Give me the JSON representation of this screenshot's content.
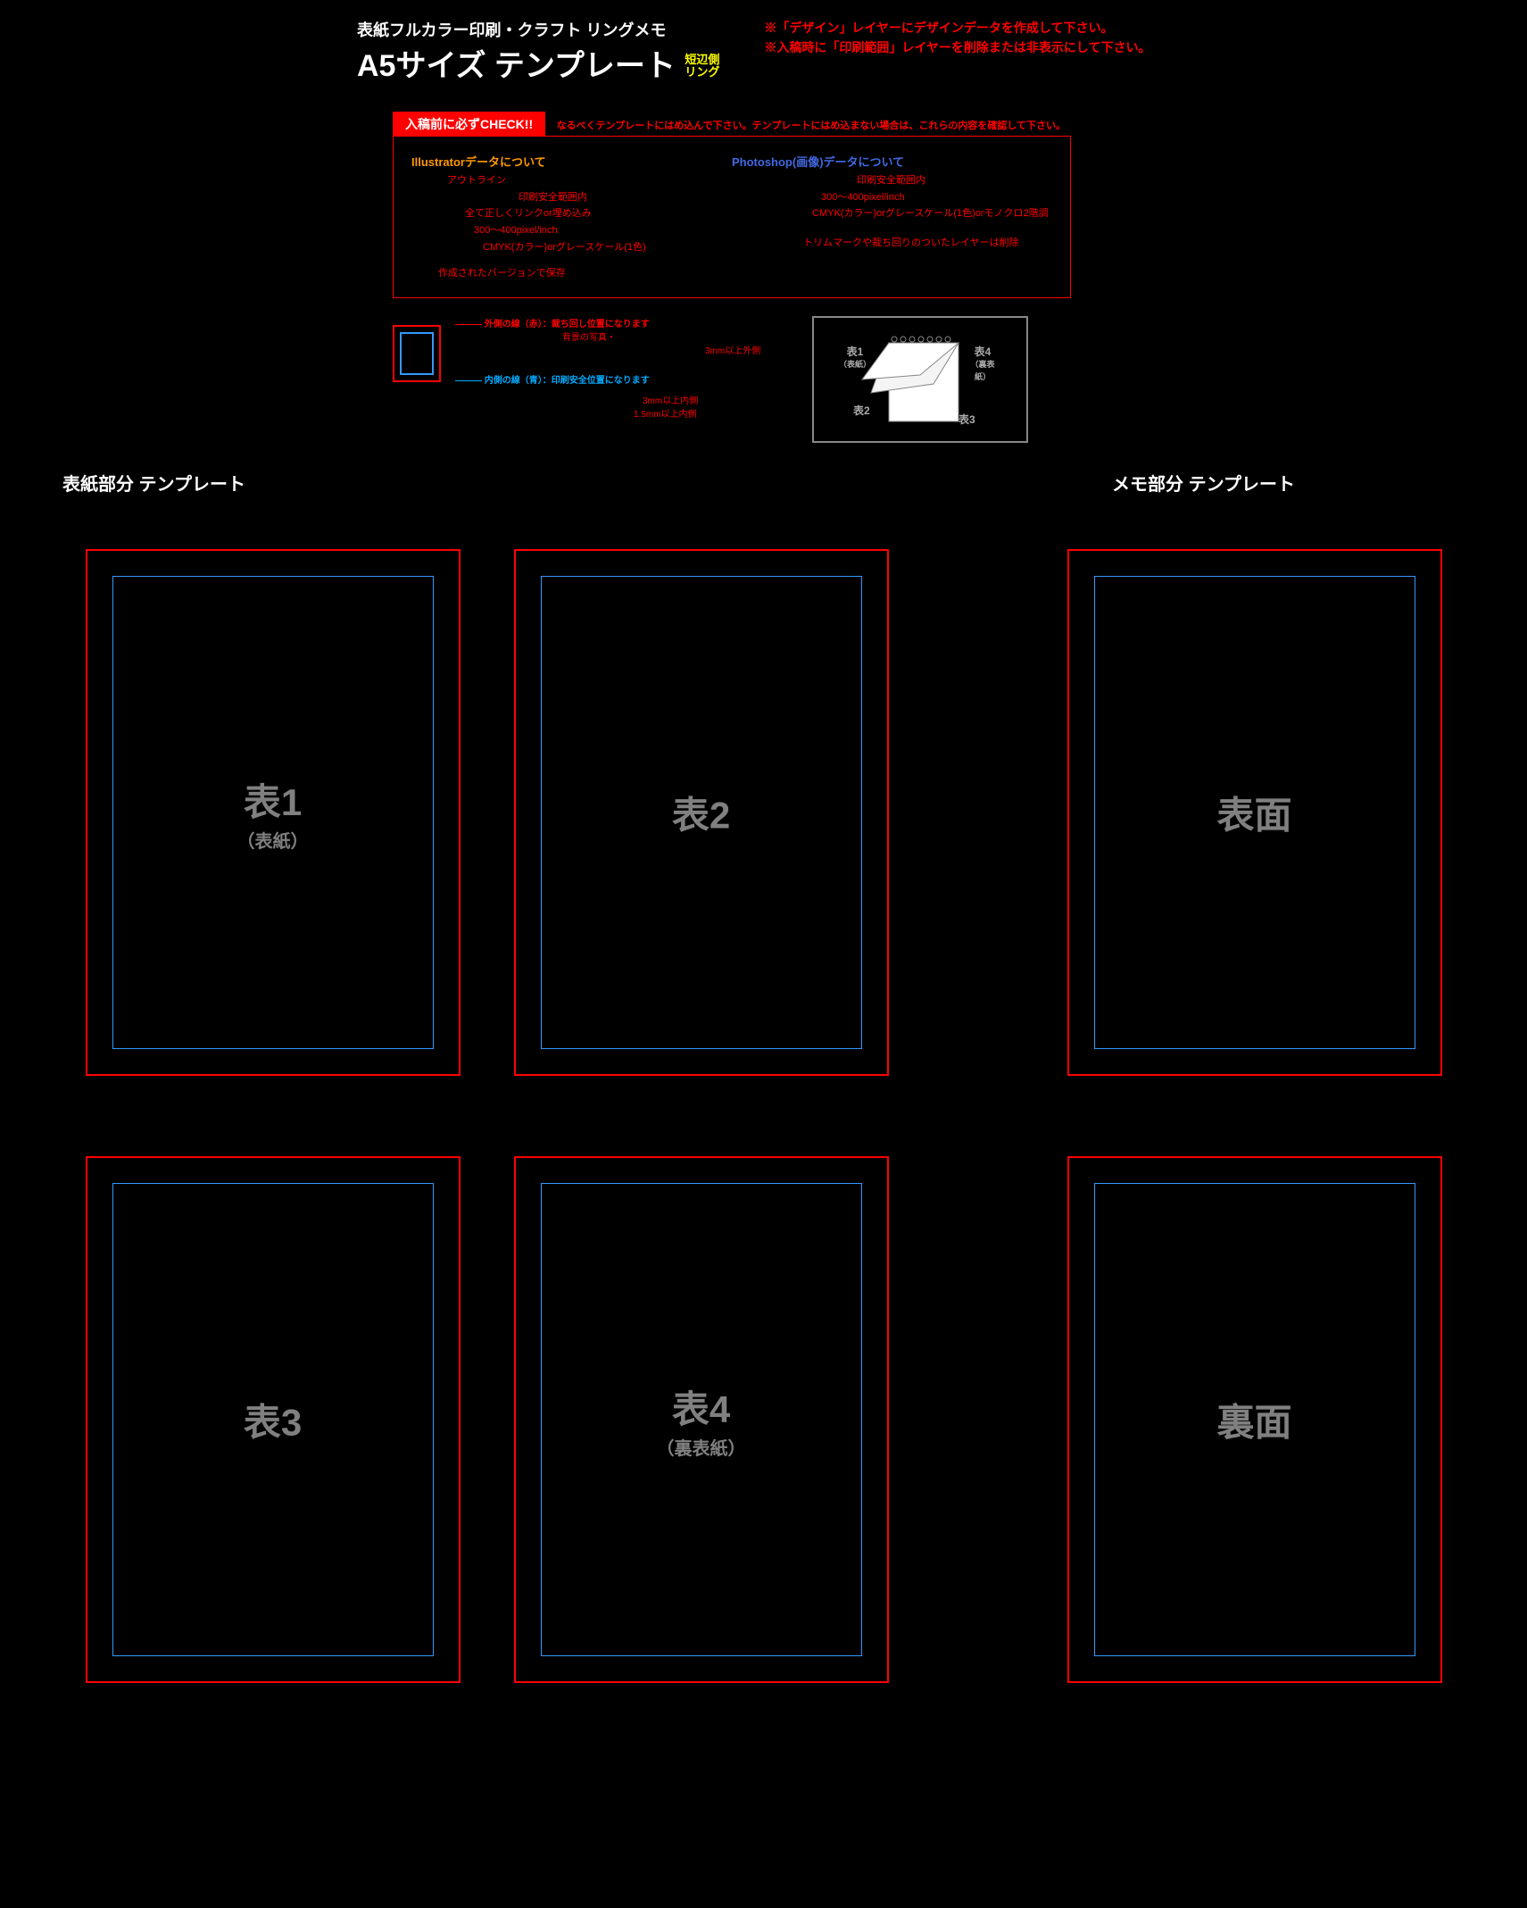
{
  "colors": {
    "bg": "#000000",
    "red": "#ff0000",
    "blue": "#3399ff",
    "orange": "#ff9900",
    "royal": "#4169e1",
    "gray": "#808080",
    "yellow": "#ffff00"
  },
  "header": {
    "subtitle": "表紙フルカラー印刷・クラフト リングメモ",
    "title": "A5サイズ テンプレート",
    "tag_line1": "短辺側",
    "tag_line2": "リング",
    "note1": "※「デザイン」レイヤーにデザインデータを作成して下さい。",
    "note2": "※入稿時に「印刷範囲」レイヤーを削除または非表示にして下さい。"
  },
  "check": {
    "tab": "入稿前に必ずCHECK!!",
    "note": "なるべくテンプレートにはめ込んで下さい。テンプレートにはめ込まない場合は、これらの内容を確認して下さい。"
  },
  "illustrator": {
    "heading": "Illustratorデータについて",
    "l1": "アウトライン",
    "l2": "印刷安全範囲内",
    "l3": "全て正しくリンクor埋め込み",
    "l4": "300～400pixel/inch",
    "l5": "CMYK(カラー)orグレースケール(1色)",
    "l6": "作成されたバージョンで保存"
  },
  "photoshop": {
    "heading": "Photoshop(画像)データについて",
    "l1": "印刷安全範囲内",
    "l2": "300～400pixel/inch",
    "l3": "CMYK(カラー)orグレースケール(1色)orモノクロ2階調",
    "l4": "トリムマークや裁ち回りのついたレイヤーは削除"
  },
  "guide": {
    "outer_label": "外側の線（赤）：裁ち回し位置になります",
    "outer_note": "背景の写真・",
    "outer_margin": "3mm以上外側",
    "inner_label": "内側の線（青）：印刷安全位置になります",
    "inner_margin1": "3mm以上内側",
    "inner_margin2": "1.5mm以上内側"
  },
  "flip": {
    "p1": "表1",
    "p1s": "（表紙）",
    "p2": "表2",
    "p3": "表3",
    "p4": "表4",
    "p4s": "（裏表紙）"
  },
  "sections": {
    "cover": "表紙部分 テンプレート",
    "memo": "メモ部分 テンプレート"
  },
  "panels": {
    "cover_w": 420,
    "cover_h": 590,
    "inner_inset": 28,
    "items": [
      {
        "title": "表1",
        "sub": "（表紙）"
      },
      {
        "title": "表2",
        "sub": ""
      },
      {
        "title": "表面",
        "sub": ""
      },
      {
        "title": "表3",
        "sub": ""
      },
      {
        "title": "表4",
        "sub": "（裏表紙）"
      },
      {
        "title": "裏面",
        "sub": ""
      }
    ]
  }
}
